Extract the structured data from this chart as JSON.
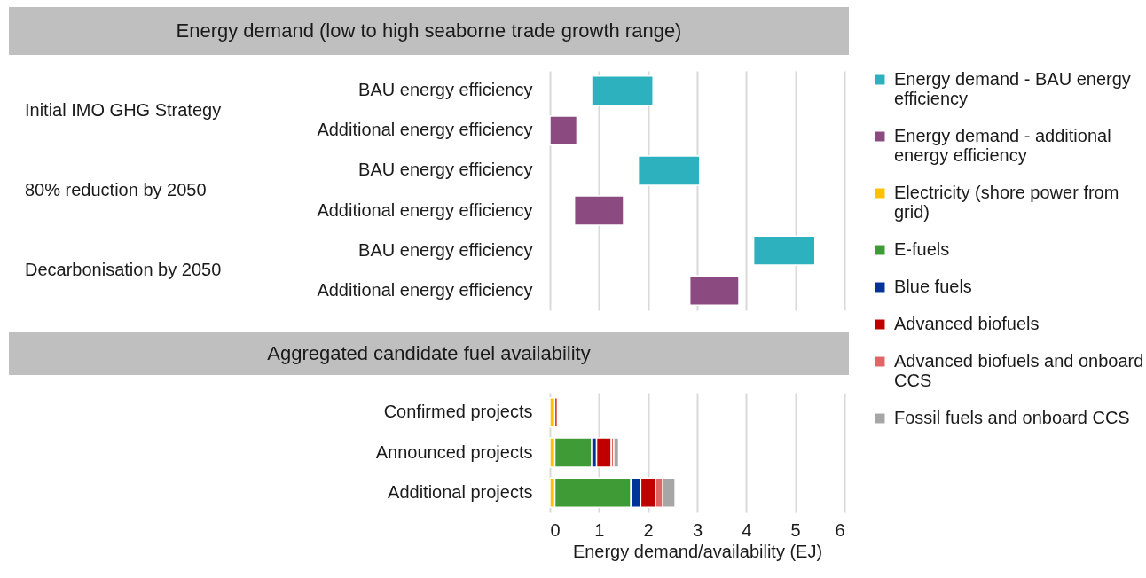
{
  "chart_data": [
    {
      "type": "bar",
      "orientation": "horizontal",
      "title": "Energy demand (low to high seaborne trade growth range)",
      "categories": [
        "BAU energy efficiency",
        "Additional energy efficiency",
        "BAU energy efficiency",
        "Additional energy efficiency",
        "BAU energy efficiency",
        "Additional energy efficiency"
      ],
      "series": [
        {
          "name": "Energy demand - BAU energy efficiency",
          "color": "#2eb1be",
          "values": [
            1.25,
            null,
            1.25,
            null,
            1.25,
            null
          ],
          "base": [
            0.85,
            null,
            1.8,
            null,
            4.15,
            null
          ]
        },
        {
          "name": "Energy demand - additional energy efficiency",
          "color": "#8b4a80",
          "values": [
            null,
            0.55,
            null,
            1.0,
            null,
            1.0
          ],
          "base": [
            null,
            0,
            null,
            0.5,
            null,
            2.85
          ]
        }
      ],
      "annotations": [
        "Initial IMO GHG Strategy",
        "80% reduction by 2050",
        "Decarbonisation by 2050"
      ],
      "xlim": [
        0,
        6
      ],
      "xticks": [
        0,
        1,
        2,
        3,
        4,
        5,
        6
      ],
      "grid": "x",
      "tick_labels": "y",
      "legend": "right"
    },
    {
      "type": "bar",
      "orientation": "horizontal",
      "stacked": true,
      "title": "Aggregated candidate fuel availability",
      "categories": [
        "Confirmed projects",
        "Announced projects",
        "Additional projects"
      ],
      "series": [
        {
          "name": "Electricity (shore power from grid)",
          "color": "#ffc000",
          "values": [
            0.1,
            0.1,
            0.1
          ]
        },
        {
          "name": "E-fuels",
          "color": "#3e9b35",
          "values": [
            null,
            0.75,
            1.55
          ]
        },
        {
          "name": "Blue fuels",
          "color": "#003399",
          "values": [
            null,
            0.1,
            0.2
          ]
        },
        {
          "name": "Advanced biofuels",
          "color": "#c00000",
          "values": [
            0.05,
            0.3,
            0.3
          ]
        },
        {
          "name": "Advanced biofuels and onboard CCS",
          "color": "#e06666",
          "values": [
            null,
            0.05,
            0.15
          ]
        },
        {
          "name": "Fossil fuels and onboard CCS",
          "color": "#a6a6a6",
          "values": [
            null,
            0.1,
            0.25
          ]
        }
      ],
      "xlabel": "Energy demand/availability (EJ)",
      "xlim": [
        0,
        6
      ],
      "xticks": [
        0,
        1,
        2,
        3,
        4,
        5,
        6
      ],
      "grid": "x",
      "legend": "right"
    }
  ]
}
